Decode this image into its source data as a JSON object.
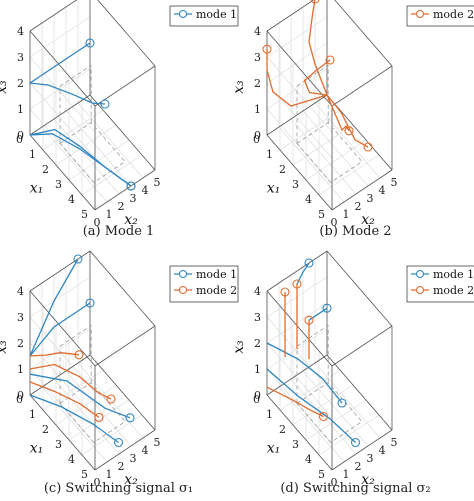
{
  "figure": {
    "captions": [
      "(a) Mode 1",
      "(b) Mode 2",
      "(c) Switching signal σ₁",
      "(d) Switching signal σ₂"
    ]
  },
  "colors": {
    "mode1": "#2e86c1",
    "mode2": "#e06c2e"
  },
  "chart_data": [
    {
      "type": "line3d",
      "caption": "(a) Mode 1",
      "xlabel": "x₁",
      "ylabel": "x₂",
      "zlabel": "x₃",
      "xlim": [
        0,
        5
      ],
      "ylim": [
        0,
        5
      ],
      "zlim": [
        0,
        4
      ],
      "xticks": [
        0,
        1,
        2,
        3,
        4,
        5
      ],
      "yticks": [
        0,
        1,
        2,
        3,
        4,
        5
      ],
      "zticks": [
        0,
        1,
        2,
        3,
        4
      ],
      "legend": [
        "mode 1"
      ],
      "legend_location": "top-right",
      "series": [
        {
          "name": "mode 1",
          "points": [
            [
              0,
              0,
              2
            ],
            [
              0,
              2,
              2
            ],
            [
              0,
              3,
              2
            ],
            [
              0,
              4,
              2
            ],
            [
              0,
              5,
              2
            ]
          ]
        },
        {
          "name": "mode 1",
          "points": [
            [
              0,
              0,
              2
            ],
            [
              0.5,
              1,
              1.9
            ],
            [
              1.5,
              2,
              1.8
            ],
            [
              2.5,
              2.5,
              1.9
            ],
            [
              3,
              3,
              2
            ]
          ]
        },
        {
          "name": "mode 1",
          "points": [
            [
              0,
              0,
              0
            ],
            [
              0.8,
              1,
              0.2
            ],
            [
              2,
              2,
              0
            ],
            [
              3.5,
              2.5,
              0
            ],
            [
              5,
              3,
              0
            ]
          ]
        },
        {
          "name": "mode 1",
          "points": [
            [
              0,
              0,
              0
            ],
            [
              0.8,
              1.2,
              0.3
            ],
            [
              2,
              2,
              0.1
            ],
            [
              3.5,
              2.5,
              0
            ],
            [
              5,
              3,
              0
            ]
          ]
        }
      ]
    },
    {
      "type": "line3d",
      "caption": "(b) Mode 2",
      "xlabel": "x₁",
      "ylabel": "x₂",
      "zlabel": "x₃",
      "xlim": [
        0,
        5
      ],
      "ylim": [
        0,
        5
      ],
      "zlim": [
        0,
        4
      ],
      "xticks": [
        0,
        1,
        2,
        3,
        4,
        5
      ],
      "yticks": [
        0,
        1,
        2,
        3,
        4,
        5
      ],
      "zticks": [
        0,
        1,
        2,
        3,
        4
      ],
      "legend": [
        "mode 2"
      ],
      "legend_location": "top-right",
      "series": [
        {
          "name": "mode 2",
          "points": [
            [
              0,
              5,
              0
            ],
            [
              0,
              2,
              0.5
            ],
            [
              0,
              0.5,
              1.5
            ],
            [
              0,
              0,
              2.5
            ],
            [
              0,
              0,
              3.3
            ]
          ]
        },
        {
          "name": "mode 2",
          "points": [
            [
              0,
              5,
              0
            ],
            [
              0.5,
              3,
              1
            ],
            [
              1.5,
              1.5,
              2.5
            ],
            [
              2.5,
              1.5,
              3.5
            ],
            [
              3,
              2,
              4
            ]
          ]
        },
        {
          "name": "mode 2",
          "points": [
            [
              0,
              5,
              0
            ],
            [
              1,
              4,
              0.8
            ],
            [
              3,
              3,
              1
            ],
            [
              3.5,
              2.8,
              1.5
            ],
            [
              4,
              2.5,
              1.7
            ]
          ]
        },
        {
          "name": "mode 2",
          "points": [
            [
              0,
              5,
              0
            ],
            [
              2,
              4,
              0.8
            ],
            [
              4,
              3,
              1.2
            ],
            [
              5,
              3,
              1.5
            ]
          ]
        },
        {
          "name": "mode 2",
          "points": [
            [
              0,
              5,
              0
            ],
            [
              0,
              4,
              1.5
            ],
            [
              0,
              3.5,
              2.5
            ],
            [
              0,
              3.8,
              3.5
            ],
            [
              0,
              4,
              4
            ]
          ]
        }
      ]
    },
    {
      "type": "line3d",
      "caption": "(c) Switching signal σ₁",
      "xlabel": "x₁",
      "ylabel": "x₂",
      "zlabel": "x₃",
      "xlim": [
        0,
        5
      ],
      "ylim": [
        0,
        5
      ],
      "zlim": [
        0,
        4
      ],
      "xticks": [
        0,
        1,
        2,
        3,
        4,
        5
      ],
      "yticks": [
        0,
        1,
        2,
        3,
        4,
        5
      ],
      "zticks": [
        0,
        1,
        2,
        3,
        4
      ],
      "legend": [
        "mode 1",
        "mode 2"
      ],
      "legend_location": "top-right",
      "series": [
        {
          "name": "mode 1",
          "points": [
            [
              0,
              0,
              1.5
            ],
            [
              0,
              2,
              2
            ],
            [
              0,
              4,
              2
            ],
            [
              0,
              5,
              2
            ]
          ]
        },
        {
          "name": "mode 1",
          "points": [
            [
              0,
              0,
              1.5
            ],
            [
              0,
              2,
              3
            ],
            [
              0,
              4,
              4
            ]
          ]
        },
        {
          "name": "mode 1",
          "points": [
            [
              0,
              0,
              0.8
            ],
            [
              1,
              2,
              0.5
            ],
            [
              3,
              3,
              0.3
            ],
            [
              4,
              4,
              0.2
            ]
          ]
        },
        {
          "name": "mode 1",
          "points": [
            [
              0,
              0,
              0
            ],
            [
              1.5,
              1,
              0.1
            ],
            [
              3,
              2,
              0
            ],
            [
              4.5,
              2.5,
              0
            ]
          ]
        },
        {
          "name": "mode 2",
          "points": [
            [
              0,
              0,
              1
            ],
            [
              0.5,
              1.5,
              1
            ],
            [
              1.5,
              2.5,
              0.8
            ],
            [
              2.5,
              3,
              0.6
            ],
            [
              3,
              3.5,
              0.5
            ]
          ]
        },
        {
          "name": "mode 2",
          "points": [
            [
              0,
              0,
              1.5
            ],
            [
              0.3,
              1,
              1.4
            ],
            [
              0.5,
              2,
              1.3
            ],
            [
              1,
              3,
              1.2
            ]
          ]
        },
        {
          "name": "mode 2",
          "points": [
            [
              0,
              0,
              0.5
            ],
            [
              1,
              1,
              0.4
            ],
            [
              2,
              2,
              0.2
            ],
            [
              3,
              2.5,
              0.1
            ]
          ]
        }
      ]
    },
    {
      "type": "line3d",
      "caption": "(d) Switching signal σ₂",
      "xlabel": "x₁",
      "ylabel": "x₂",
      "zlabel": "x₃",
      "xlim": [
        0,
        5
      ],
      "ylim": [
        0,
        5
      ],
      "zlim": [
        0,
        4
      ],
      "xticks": [
        0,
        1,
        2,
        3,
        4,
        5
      ],
      "yticks": [
        0,
        1,
        2,
        3,
        4,
        5
      ],
      "zticks": [
        0,
        1,
        2,
        3,
        4
      ],
      "legend": [
        "mode 1",
        "mode 2"
      ],
      "legend_location": "top-right",
      "series": [
        {
          "name": "mode 1",
          "points": [
            [
              0,
              0,
              2
            ],
            [
              1,
              1.5,
              1.5
            ],
            [
              2,
              2.5,
              1
            ],
            [
              3,
              3,
              0.5
            ]
          ]
        },
        {
          "name": "mode 1",
          "points": [
            [
              0,
              0,
              1
            ],
            [
              1.5,
              1,
              0.5
            ],
            [
              3,
              2,
              0.2
            ],
            [
              4.5,
              2.5,
              0
            ]
          ]
        },
        {
          "name": "mode 1",
          "points": [
            [
              0,
              2.5,
              3.5
            ],
            [
              0,
              3,
              3.8
            ],
            [
              0,
              3.5,
              4
            ]
          ]
        },
        {
          "name": "mode 1",
          "points": [
            [
              0,
              3.5,
              1.8
            ],
            [
              0,
              4.5,
              1.8
            ],
            [
              0,
              5,
              1.8
            ]
          ]
        },
        {
          "name": "mode 2",
          "points": [
            [
              0,
              1.5,
              1
            ],
            [
              0,
              1.5,
              2
            ],
            [
              0,
              1.5,
              3
            ],
            [
              0,
              1.5,
              3.5
            ]
          ]
        },
        {
          "name": "mode 2",
          "points": [
            [
              0,
              2.5,
              1
            ],
            [
              0,
              2.5,
              2.5
            ],
            [
              0,
              2.5,
              3.5
            ]
          ]
        },
        {
          "name": "mode 2",
          "points": [
            [
              0,
              3.5,
              0.3
            ],
            [
              0,
              3.5,
              1
            ],
            [
              0,
              3.5,
              1.8
            ]
          ]
        },
        {
          "name": "mode 2",
          "points": [
            [
              0,
              0,
              0.3
            ],
            [
              1,
              0.8,
              0.2
            ],
            [
              2,
              1.5,
              0.1
            ],
            [
              2.5,
              2,
              0
            ]
          ]
        }
      ]
    }
  ]
}
